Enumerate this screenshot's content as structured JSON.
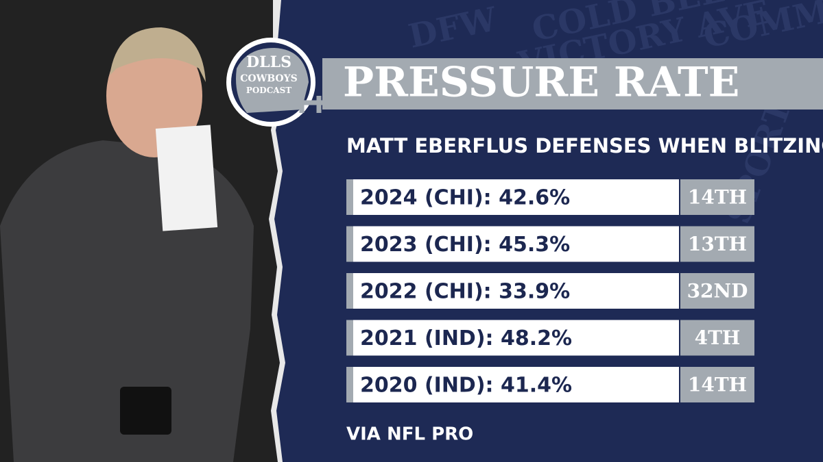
{
  "logo": {
    "line1": "DLLS",
    "line2": "COWBOYS",
    "line3": "PODCAST"
  },
  "header": {
    "title": "PRESSURE RATE",
    "subtitle": "MATT EBERFLUS DEFENSES WHEN BLITZING"
  },
  "rows": [
    {
      "label": "2024 (CHI): 42.6%",
      "rank": "14TH"
    },
    {
      "label": "2023 (CHI): 45.3%",
      "rank": "13TH"
    },
    {
      "label": "2022 (CHI): 33.9%",
      "rank": "32ND"
    },
    {
      "label": "2021 (IND): 48.2%",
      "rank": "4TH"
    },
    {
      "label": "2020 (IND): 41.4%",
      "rank": "14TH"
    }
  ],
  "background_words": [
    "COLD BEER",
    "VICTORY AVE",
    "COMMUNITY",
    "DFW",
    "SPORTS"
  ],
  "source": "VIA NFL PRO"
}
